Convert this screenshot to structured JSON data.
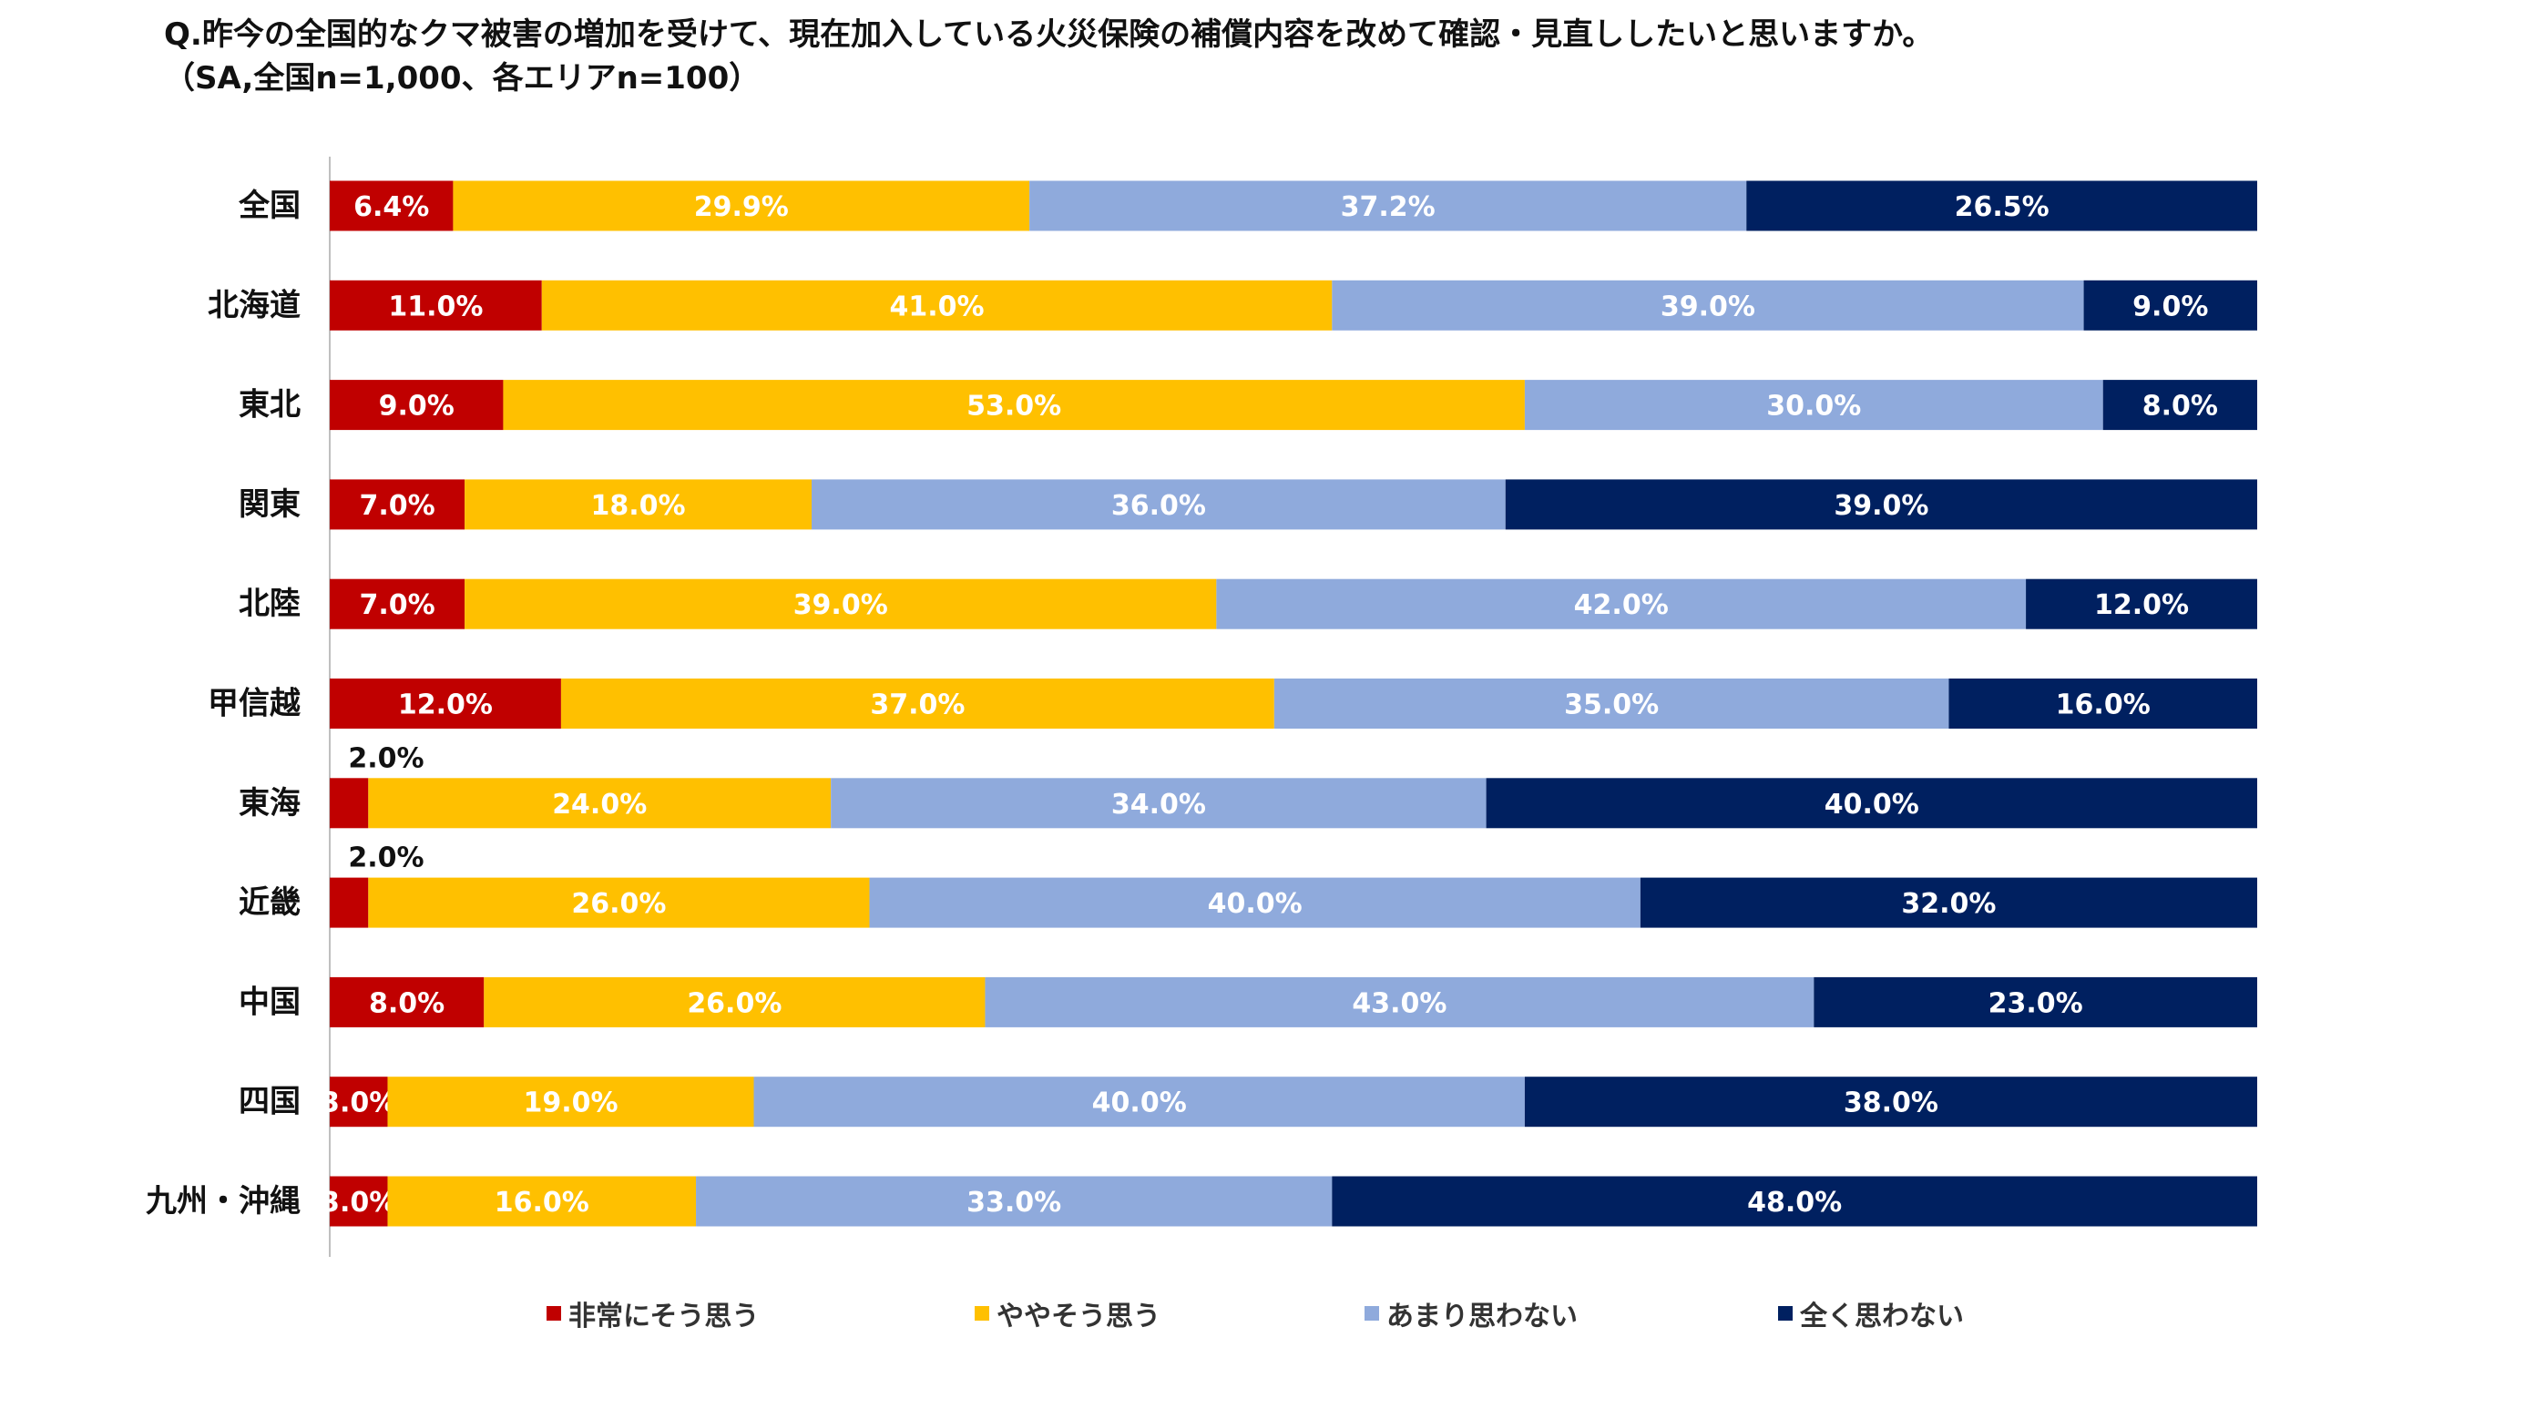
{
  "title_line1": "Q.昨今の全国的なクマ被害の増加を受けて、現在加入している火災保険の補償内容を改めて確認・見直ししたいと思いますか。",
  "title_line2": "（SA,全国n=1,000、各エリアn=100）",
  "chart_data": {
    "type": "bar",
    "orientation": "horizontal",
    "stacked": "percent",
    "xlim": [
      0,
      100
    ],
    "categories": [
      "全国",
      "北海道",
      "東北",
      "関東",
      "北陸",
      "甲信越",
      "東海",
      "近畿",
      "中国",
      "四国",
      "九州・沖縄"
    ],
    "series": [
      {
        "name": "非常にそう思う",
        "color": "#c00000",
        "label_color": "#ffffff",
        "values": [
          6.4,
          11.0,
          9.0,
          7.0,
          7.0,
          12.0,
          2.0,
          2.0,
          8.0,
          3.0,
          3.0
        ],
        "labels": [
          "6.4%",
          "11.0%",
          "9.0%",
          "7.0%",
          "7.0%",
          "12.0%",
          "2.0%",
          "2.0%",
          "8.0%",
          "3.0%",
          "3.0%"
        ]
      },
      {
        "name": "ややそう思う",
        "color": "#ffc000",
        "label_color": "#ffffff",
        "values": [
          29.9,
          41.0,
          53.0,
          18.0,
          39.0,
          37.0,
          24.0,
          26.0,
          26.0,
          19.0,
          16.0
        ],
        "labels": [
          "29.9%",
          "41.0%",
          "53.0%",
          "18.0%",
          "39.0%",
          "37.0%",
          "24.0%",
          "26.0%",
          "26.0%",
          "19.0%",
          "16.0%"
        ]
      },
      {
        "name": "あまり思わない",
        "color": "#8faadc",
        "label_color": "#ffffff",
        "values": [
          37.2,
          39.0,
          30.0,
          36.0,
          42.0,
          35.0,
          34.0,
          40.0,
          43.0,
          40.0,
          33.0
        ],
        "labels": [
          "37.2%",
          "39.0%",
          "30.0%",
          "36.0%",
          "42.0%",
          "35.0%",
          "34.0%",
          "40.0%",
          "43.0%",
          "40.0%",
          "33.0%"
        ]
      },
      {
        "name": "全く思わない",
        "color": "#002060",
        "label_color": "#ffffff",
        "values": [
          26.5,
          9.0,
          8.0,
          39.0,
          12.0,
          16.0,
          40.0,
          32.0,
          23.0,
          38.0,
          48.0
        ],
        "labels": [
          "26.5%",
          "9.0%",
          "8.0%",
          "39.0%",
          "12.0%",
          "16.0%",
          "40.0%",
          "32.0%",
          "23.0%",
          "38.0%",
          "48.0%"
        ]
      }
    ],
    "legend_position": "bottom",
    "grid": false
  }
}
